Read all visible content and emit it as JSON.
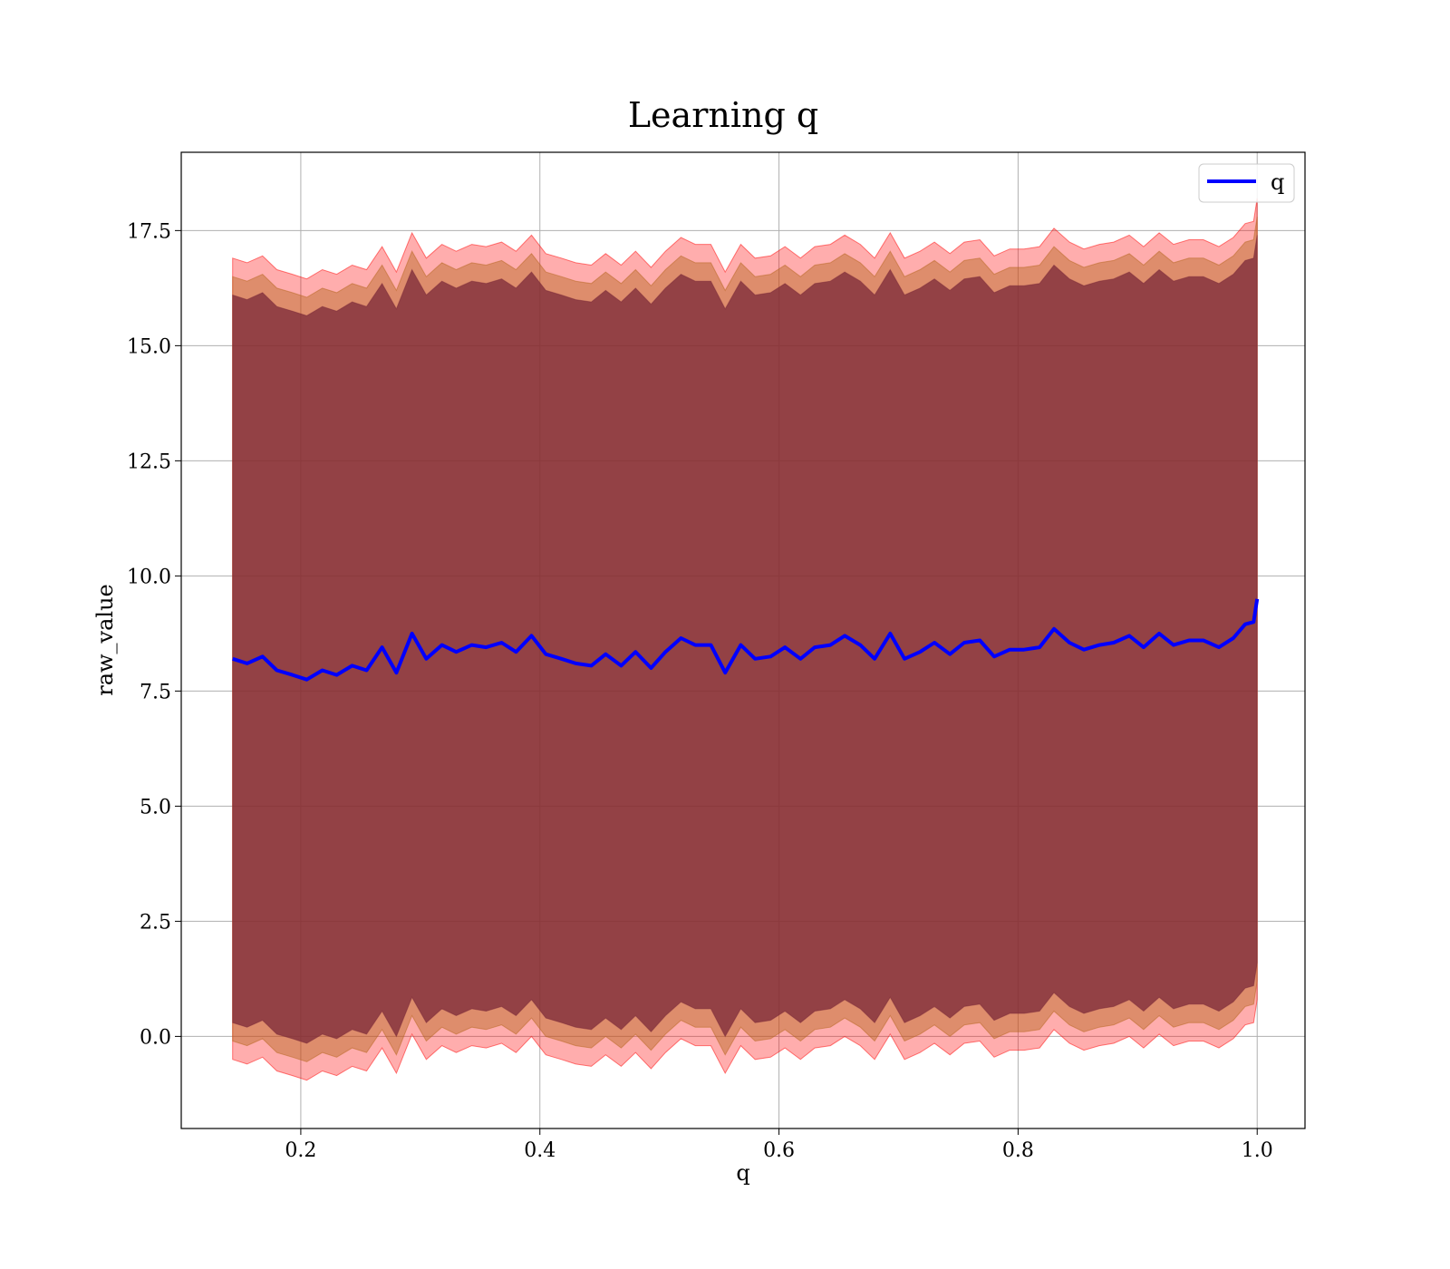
{
  "chart_data": {
    "type": "line",
    "title": "Learning q",
    "xlabel": "q",
    "ylabel": "raw_value",
    "xlim": [
      0.1,
      1.04
    ],
    "ylim": [
      -2.0,
      19.2
    ],
    "xticks": [
      0.2,
      0.4,
      0.6,
      0.8,
      1.0
    ],
    "xtick_labels": [
      "0.2",
      "0.4",
      "0.6",
      "0.8",
      "1.0"
    ],
    "yticks": [
      0.0,
      2.5,
      5.0,
      7.5,
      10.0,
      12.5,
      15.0,
      17.5
    ],
    "ytick_labels": [
      "0.0",
      "2.5",
      "5.0",
      "7.5",
      "10.0",
      "12.5",
      "15.0",
      "17.5"
    ],
    "grid": true,
    "legend": {
      "position": "top-right",
      "entries": [
        "q"
      ]
    },
    "colors": {
      "line": "#0000ff",
      "band_outer": "#ff0000",
      "band_middle": "#b5651d",
      "band_inner": "#7a2838",
      "grid": "#b0b0b0"
    },
    "bands": [
      {
        "level": "outer",
        "upper_offset": 8.7,
        "lower_offset": -8.7
      },
      {
        "level": "middle",
        "upper_offset": 8.3,
        "lower_offset": -8.3
      },
      {
        "level": "inner",
        "upper_offset": 7.9,
        "lower_offset": -7.9
      }
    ],
    "series": [
      {
        "name": "q",
        "x": [
          0.143,
          0.155,
          0.168,
          0.18,
          0.193,
          0.205,
          0.218,
          0.23,
          0.243,
          0.255,
          0.268,
          0.28,
          0.293,
          0.305,
          0.318,
          0.33,
          0.343,
          0.355,
          0.368,
          0.38,
          0.393,
          0.405,
          0.418,
          0.43,
          0.443,
          0.455,
          0.468,
          0.48,
          0.493,
          0.505,
          0.518,
          0.53,
          0.543,
          0.555,
          0.568,
          0.58,
          0.593,
          0.605,
          0.618,
          0.63,
          0.643,
          0.655,
          0.668,
          0.68,
          0.693,
          0.705,
          0.718,
          0.73,
          0.743,
          0.755,
          0.768,
          0.78,
          0.793,
          0.805,
          0.818,
          0.83,
          0.843,
          0.855,
          0.868,
          0.88,
          0.893,
          0.905,
          0.918,
          0.93,
          0.943,
          0.955,
          0.968,
          0.98,
          0.99,
          0.997,
          1.0
        ],
        "values": [
          8.2,
          8.1,
          8.25,
          7.95,
          7.85,
          7.75,
          7.95,
          7.85,
          8.05,
          7.95,
          8.45,
          7.9,
          8.75,
          8.2,
          8.5,
          8.35,
          8.5,
          8.45,
          8.55,
          8.35,
          8.7,
          8.3,
          8.2,
          8.1,
          8.05,
          8.3,
          8.05,
          8.35,
          8.0,
          8.35,
          8.65,
          8.5,
          8.5,
          7.9,
          8.5,
          8.2,
          8.25,
          8.45,
          8.2,
          8.45,
          8.5,
          8.7,
          8.5,
          8.2,
          8.75,
          8.2,
          8.35,
          8.55,
          8.3,
          8.55,
          8.6,
          8.25,
          8.4,
          8.4,
          8.45,
          8.85,
          8.55,
          8.4,
          8.5,
          8.55,
          8.7,
          8.45,
          8.75,
          8.5,
          8.6,
          8.6,
          8.45,
          8.65,
          8.95,
          9.0,
          9.5
        ]
      }
    ]
  }
}
